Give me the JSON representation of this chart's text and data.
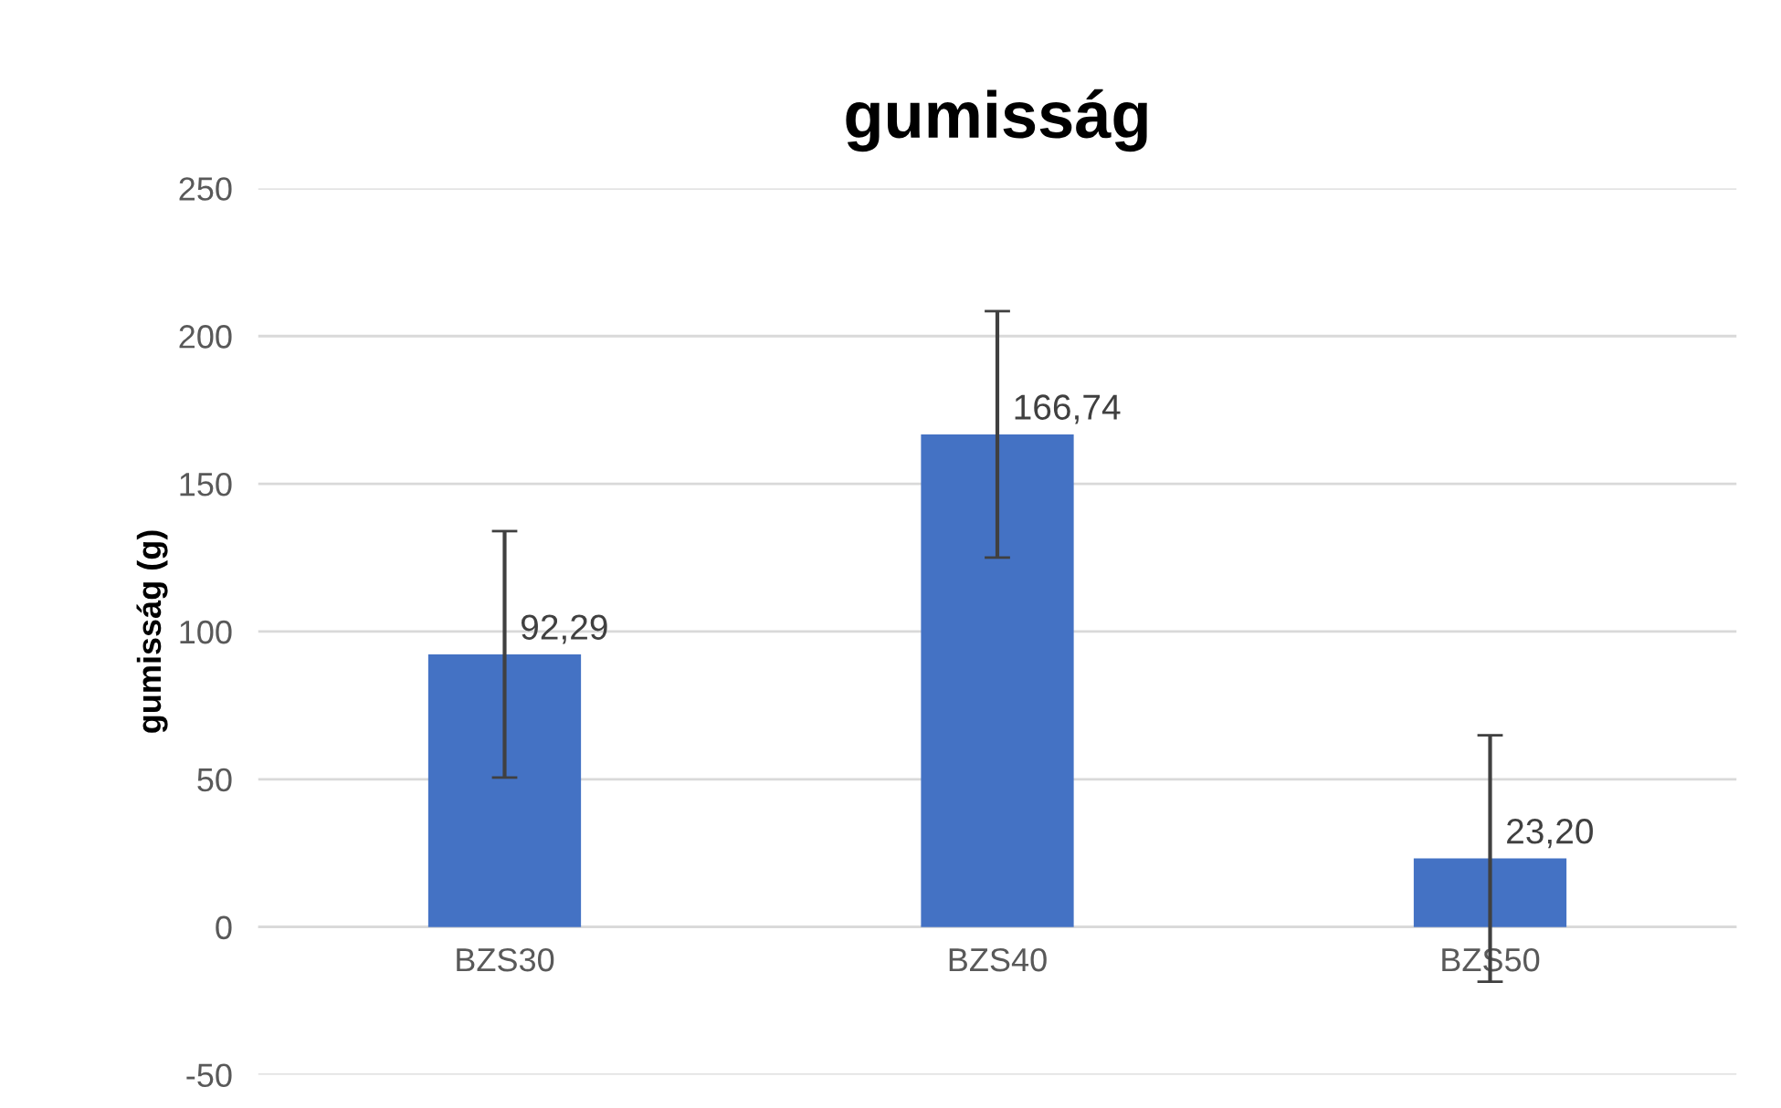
{
  "chart_data": {
    "type": "bar",
    "title": "gumisság",
    "ylabel": "gumisság (g)",
    "categories": [
      "BZS30",
      "BZS40",
      "BZS50"
    ],
    "values": [
      92.29,
      166.74,
      23.2
    ],
    "value_labels": [
      "92,29",
      "166,74",
      "23,20"
    ],
    "errors": [
      41.7,
      41.7,
      41.7
    ],
    "color": "#4472c4",
    "ylim": [
      -50,
      250
    ],
    "yticks": [
      -50,
      0,
      50,
      100,
      150,
      200,
      250
    ],
    "grid": "y"
  }
}
